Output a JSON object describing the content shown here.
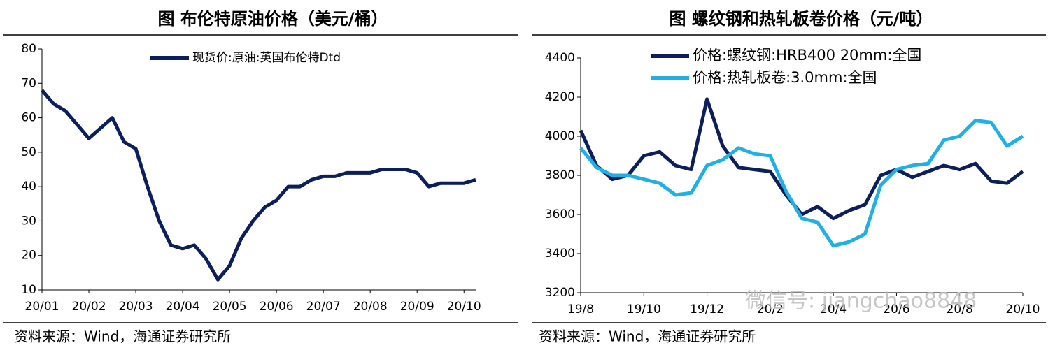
{
  "chart_data": [
    {
      "type": "line",
      "title": "图 布伦特原油价格（美元/桶）",
      "source": "资料来源：Wind，海通证券研究所",
      "categories": [
        "20/01",
        null,
        null,
        null,
        "20/02",
        null,
        null,
        null,
        "20/03",
        null,
        null,
        null,
        "20/04",
        null,
        null,
        null,
        "20/05",
        null,
        null,
        null,
        "20/06",
        null,
        null,
        null,
        "20/07",
        null,
        null,
        null,
        "20/08",
        null,
        null,
        null,
        "20/09",
        null,
        null,
        null,
        "20/10",
        null
      ],
      "series": [
        {
          "name": "现货价:原油:英国布伦特Dtd",
          "color": "#0c1f5c",
          "values": [
            68,
            64,
            62,
            58,
            54,
            57,
            60,
            53,
            51,
            40,
            30,
            23,
            22,
            23,
            19,
            13,
            17,
            25,
            30,
            34,
            36,
            40,
            40,
            42,
            43,
            43,
            44,
            44,
            44,
            45,
            45,
            45,
            44,
            40,
            41,
            41,
            41,
            42
          ]
        }
      ],
      "ylim": [
        10,
        80
      ],
      "yticks": [
        10,
        20,
        30,
        40,
        50,
        60,
        70,
        80
      ],
      "legend": "top"
    },
    {
      "type": "line",
      "title": "图 螺纹钢和热轧板卷价格（元/吨）",
      "source": "资料来源：Wind，海通证券研究所",
      "categories": [
        "19/8",
        null,
        null,
        null,
        "19/10",
        null,
        null,
        null,
        "19/12",
        null,
        null,
        null,
        "20/2",
        null,
        null,
        null,
        "20/4",
        null,
        null,
        null,
        "20/6",
        null,
        null,
        null,
        "20/8",
        null,
        null,
        null,
        "20/10"
      ],
      "series": [
        {
          "name": "价格:螺纹钢:HRB400 20mm:全国",
          "color": "#0c1f5c",
          "values": [
            4030,
            3850,
            3780,
            3800,
            3900,
            3920,
            3850,
            3830,
            4190,
            3950,
            3840,
            3830,
            3820,
            3700,
            3600,
            3640,
            3580,
            3620,
            3650,
            3800,
            3830,
            3790,
            3820,
            3850,
            3830,
            3860,
            3770,
            3760,
            3820
          ]
        },
        {
          "name": "价格:热轧板卷:3.0mm:全国",
          "color": "#1fb0e6",
          "values": [
            3940,
            3840,
            3800,
            3800,
            3780,
            3760,
            3700,
            3710,
            3850,
            3880,
            3940,
            3910,
            3900,
            3720,
            3580,
            3560,
            3440,
            3460,
            3500,
            3750,
            3830,
            3850,
            3860,
            3980,
            4000,
            4080,
            4070,
            3950,
            4000
          ]
        }
      ],
      "ylim": [
        3200,
        4400
      ],
      "yticks": [
        3200,
        3400,
        3600,
        3800,
        4000,
        4200,
        4400
      ],
      "legend": "top-left"
    }
  ],
  "watermark": "微信号: jiangchao8848"
}
